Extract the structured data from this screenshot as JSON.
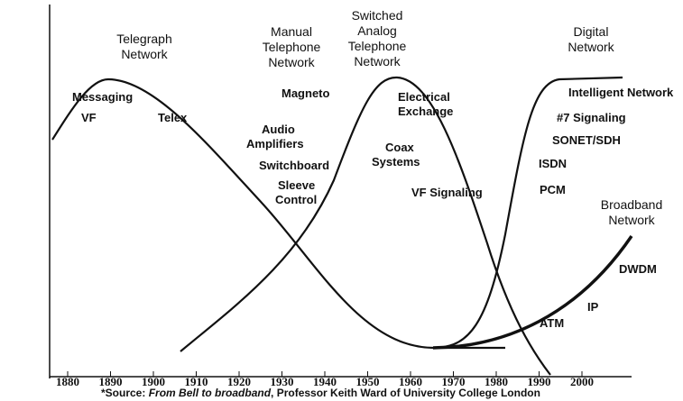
{
  "title_eras": [
    {
      "lines": [
        "Telegraph",
        "Network"
      ]
    },
    {
      "lines": [
        "Manual",
        "Telephone",
        "Network"
      ]
    },
    {
      "lines": [
        "Switched",
        "Analog",
        "Telephone",
        "Network"
      ]
    },
    {
      "lines": [
        "Digital",
        "Network"
      ]
    },
    {
      "lines": [
        "Broadband",
        "Network"
      ]
    }
  ],
  "technologies": [
    "Messaging",
    "VF",
    "Telex",
    "Magneto",
    "Audio",
    "Amplifiers",
    "Switchboard",
    "Sleeve",
    "Control",
    "Electrical",
    "Exchange",
    "Coax",
    "Systems",
    "VF Signaling",
    "Intelligent Network",
    "#7 Signaling",
    "SONET/SDH",
    "ISDN",
    "PCM",
    "DWDM",
    "IP",
    "ATM"
  ],
  "x_axis": {
    "labels": [
      "1880",
      "1890",
      "1900",
      "1910",
      "1920",
      "1930",
      "1940",
      "1950",
      "1960",
      "1970",
      "1980",
      "1990",
      "2000"
    ]
  },
  "source": {
    "prefix": "*Source: ",
    "title": "From Bell to broadband",
    "suffix": ", Professor Keith Ward of University College London"
  }
}
